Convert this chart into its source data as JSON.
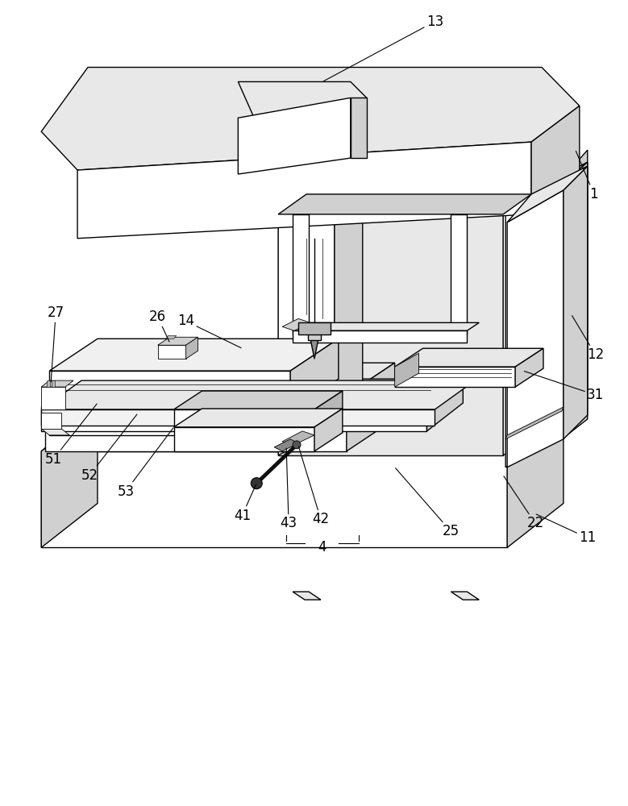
{
  "figure_size": [
    7.79,
    10.0
  ],
  "dpi": 100,
  "bg": "#ffffff",
  "lc": "#000000",
  "lw": 1.0,
  "tlw": 0.6,
  "c_white": "#ffffff",
  "c_light": "#e8e8e8",
  "c_mid": "#d0d0d0",
  "c_dark": "#b8b8b8",
  "c_vdark": "#909090",
  "label_fs": 12
}
